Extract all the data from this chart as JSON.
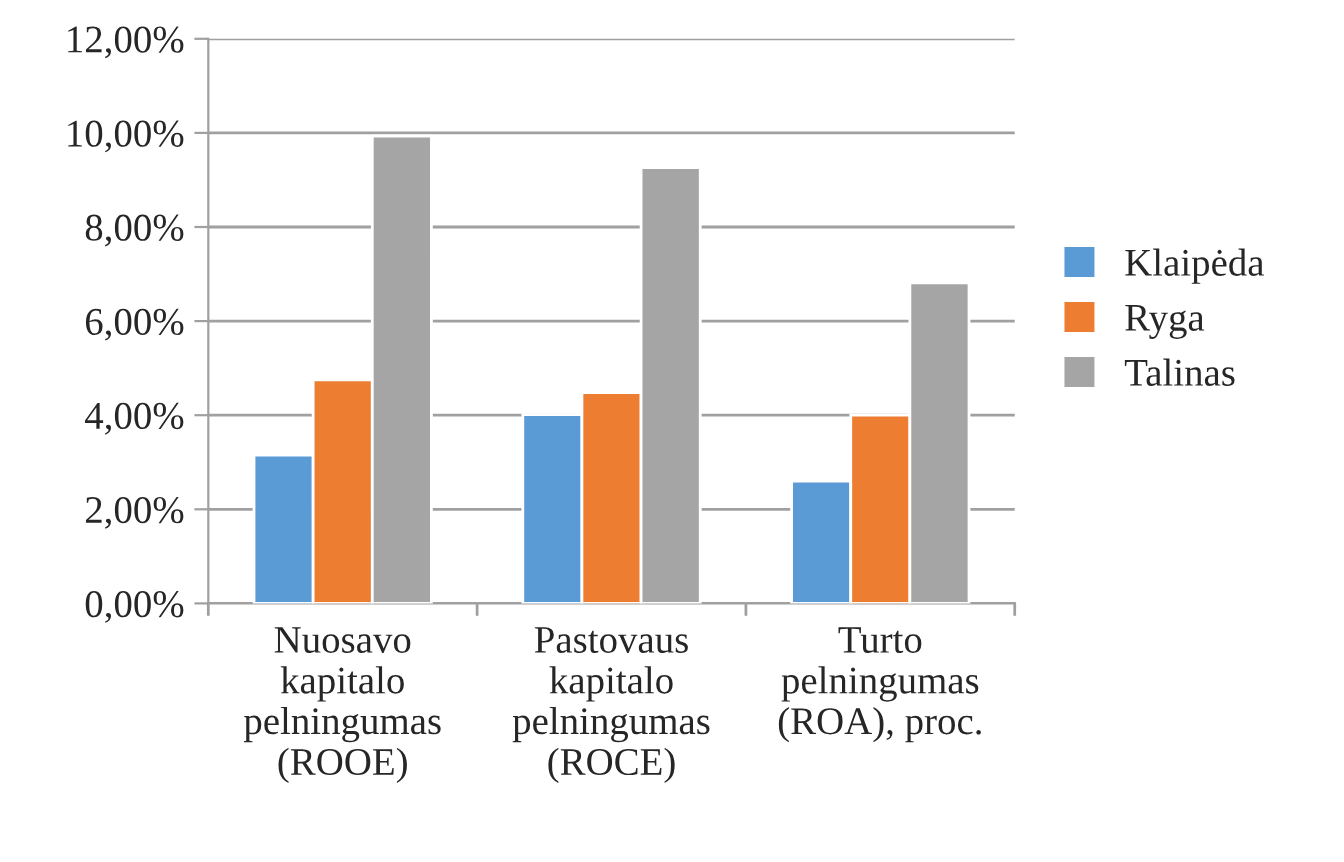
{
  "chart_data": {
    "type": "bar",
    "categories": [
      "Nuosavo\nkapitalo\npelningumas\n(ROOE)",
      "Pastovaus\nkapitalo\npelningumas\n(ROCE)",
      "Turto\npelningumas\n(ROA), proc."
    ],
    "series": [
      {
        "name": "Klaipėda",
        "color": "#5b9bd5",
        "values": [
          3.15,
          4.01,
          2.6
        ]
      },
      {
        "name": "Ryga",
        "color": "#ed7d31",
        "values": [
          4.75,
          4.48,
          4.0
        ]
      },
      {
        "name": "Talinas",
        "color": "#a5a5a5",
        "values": [
          9.93,
          9.26,
          6.81
        ]
      }
    ],
    "ylim": [
      0,
      12
    ],
    "yticks": [
      {
        "value": 0,
        "label": "0,00%"
      },
      {
        "value": 2,
        "label": "2,00%"
      },
      {
        "value": 4,
        "label": "4,00%"
      },
      {
        "value": 6,
        "label": "6,00%"
      },
      {
        "value": 8,
        "label": "8,00%"
      },
      {
        "value": 10,
        "label": "10,00%"
      },
      {
        "value": 12,
        "label": "12,00%"
      }
    ],
    "grid": "y",
    "legend": "right"
  }
}
